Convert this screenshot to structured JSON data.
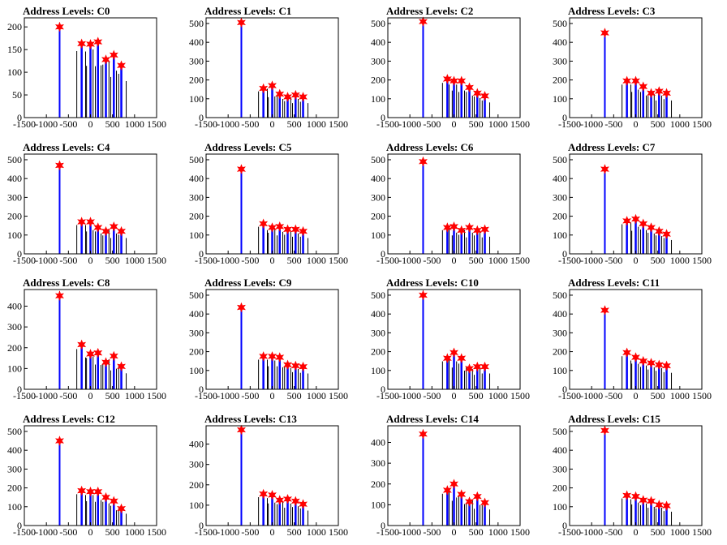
{
  "style": {
    "frame_color": "#000000",
    "spike_color": "#000000",
    "fill_color": "#0000ff",
    "marker_color": "#ff0000"
  },
  "chart_data": [
    {
      "type": "bar",
      "title": "Address Levels: C0",
      "xlim": [
        -1500,
        1500
      ],
      "ylim": [
        0,
        220
      ],
      "xticks": [
        -1500,
        -1000,
        -500,
        0,
        500,
        1000,
        1500
      ],
      "yticks": [
        0,
        50,
        100,
        150,
        200
      ],
      "peaks": [
        {
          "x": -700,
          "y": 200
        },
        {
          "x": -200,
          "y": 163
        },
        {
          "x": 0,
          "y": 162
        },
        {
          "x": 170,
          "y": 167
        },
        {
          "x": 350,
          "y": 128
        },
        {
          "x": 530,
          "y": 138
        },
        {
          "x": 700,
          "y": 115
        }
      ]
    },
    {
      "type": "bar",
      "title": "Address Levels: C1",
      "xlim": [
        -1500,
        1500
      ],
      "ylim": [
        0,
        530
      ],
      "xticks": [
        -1500,
        -1000,
        -500,
        0,
        500,
        1000,
        1500
      ],
      "yticks": [
        0,
        100,
        200,
        300,
        400,
        500
      ],
      "peaks": [
        {
          "x": -700,
          "y": 505
        },
        {
          "x": -200,
          "y": 155
        },
        {
          "x": 0,
          "y": 170
        },
        {
          "x": 170,
          "y": 125
        },
        {
          "x": 350,
          "y": 110
        },
        {
          "x": 530,
          "y": 120
        },
        {
          "x": 700,
          "y": 110
        }
      ]
    },
    {
      "type": "bar",
      "title": "Address Levels: C2",
      "xlim": [
        -1500,
        1500
      ],
      "ylim": [
        0,
        530
      ],
      "xticks": [
        -1500,
        -1000,
        -500,
        0,
        500,
        1000,
        1500
      ],
      "yticks": [
        0,
        100,
        200,
        300,
        400,
        500
      ],
      "peaks": [
        {
          "x": -700,
          "y": 510
        },
        {
          "x": -150,
          "y": 205
        },
        {
          "x": 0,
          "y": 195
        },
        {
          "x": 170,
          "y": 195
        },
        {
          "x": 350,
          "y": 160
        },
        {
          "x": 530,
          "y": 130
        },
        {
          "x": 700,
          "y": 115
        }
      ]
    },
    {
      "type": "bar",
      "title": "Address Levels: C3",
      "xlim": [
        -1500,
        1500
      ],
      "ylim": [
        0,
        530
      ],
      "xticks": [
        -1500,
        -1000,
        -500,
        0,
        500,
        1000,
        1500
      ],
      "yticks": [
        0,
        100,
        200,
        300,
        400,
        500
      ],
      "peaks": [
        {
          "x": -700,
          "y": 450
        },
        {
          "x": -200,
          "y": 195
        },
        {
          "x": 0,
          "y": 195
        },
        {
          "x": 170,
          "y": 165
        },
        {
          "x": 350,
          "y": 130
        },
        {
          "x": 530,
          "y": 140
        },
        {
          "x": 700,
          "y": 130
        }
      ]
    },
    {
      "type": "bar",
      "title": "Address Levels: C4",
      "xlim": [
        -1500,
        1500
      ],
      "ylim": [
        0,
        530
      ],
      "xticks": [
        -1500,
        -1000,
        -500,
        0,
        500,
        1000,
        1500
      ],
      "yticks": [
        0,
        100,
        200,
        300,
        400,
        500
      ],
      "peaks": [
        {
          "x": -700,
          "y": 470
        },
        {
          "x": -200,
          "y": 170
        },
        {
          "x": 0,
          "y": 170
        },
        {
          "x": 170,
          "y": 140
        },
        {
          "x": 350,
          "y": 120
        },
        {
          "x": 530,
          "y": 145
        },
        {
          "x": 700,
          "y": 120
        }
      ]
    },
    {
      "type": "bar",
      "title": "Address Levels: C5",
      "xlim": [
        -1500,
        1500
      ],
      "ylim": [
        0,
        530
      ],
      "xticks": [
        -1500,
        -1000,
        -500,
        0,
        500,
        1000,
        1500
      ],
      "yticks": [
        0,
        100,
        200,
        300,
        400,
        500
      ],
      "peaks": [
        {
          "x": -700,
          "y": 450
        },
        {
          "x": -200,
          "y": 160
        },
        {
          "x": 0,
          "y": 140
        },
        {
          "x": 170,
          "y": 145
        },
        {
          "x": 350,
          "y": 130
        },
        {
          "x": 530,
          "y": 130
        },
        {
          "x": 700,
          "y": 120
        }
      ]
    },
    {
      "type": "bar",
      "title": "Address Levels: C6",
      "xlim": [
        -1500,
        1500
      ],
      "ylim": [
        0,
        530
      ],
      "xticks": [
        -1500,
        -1000,
        -500,
        0,
        500,
        1000,
        1500
      ],
      "yticks": [
        0,
        100,
        200,
        300,
        400,
        500
      ],
      "peaks": [
        {
          "x": -700,
          "y": 490
        },
        {
          "x": -150,
          "y": 140
        },
        {
          "x": 0,
          "y": 145
        },
        {
          "x": 170,
          "y": 125
        },
        {
          "x": 350,
          "y": 140
        },
        {
          "x": 530,
          "y": 125
        },
        {
          "x": 700,
          "y": 130
        }
      ]
    },
    {
      "type": "bar",
      "title": "Address Levels: C7",
      "xlim": [
        -1500,
        1500
      ],
      "ylim": [
        0,
        530
      ],
      "xticks": [
        -1500,
        -1000,
        -500,
        0,
        500,
        1000,
        1500
      ],
      "yticks": [
        0,
        100,
        200,
        300,
        400,
        500
      ],
      "peaks": [
        {
          "x": -700,
          "y": 450
        },
        {
          "x": -200,
          "y": 175
        },
        {
          "x": 0,
          "y": 185
        },
        {
          "x": 170,
          "y": 160
        },
        {
          "x": 350,
          "y": 140
        },
        {
          "x": 530,
          "y": 120
        },
        {
          "x": 700,
          "y": 105
        }
      ]
    },
    {
      "type": "bar",
      "title": "Address Levels: C8",
      "xlim": [
        -1500,
        1500
      ],
      "ylim": [
        0,
        480
      ],
      "xticks": [
        -1500,
        -1000,
        -500,
        0,
        500,
        1000,
        1500
      ],
      "yticks": [
        0,
        100,
        200,
        300,
        400
      ],
      "peaks": [
        {
          "x": -700,
          "y": 450
        },
        {
          "x": -200,
          "y": 215
        },
        {
          "x": 0,
          "y": 170
        },
        {
          "x": 170,
          "y": 175
        },
        {
          "x": 350,
          "y": 130
        },
        {
          "x": 530,
          "y": 160
        },
        {
          "x": 700,
          "y": 110
        }
      ]
    },
    {
      "type": "bar",
      "title": "Address Levels: C9",
      "xlim": [
        -1500,
        1500
      ],
      "ylim": [
        0,
        530
      ],
      "xticks": [
        -1500,
        -1000,
        -500,
        0,
        500,
        1000,
        1500
      ],
      "yticks": [
        0,
        100,
        200,
        300,
        400,
        500
      ],
      "peaks": [
        {
          "x": -700,
          "y": 435
        },
        {
          "x": -200,
          "y": 175
        },
        {
          "x": 0,
          "y": 175
        },
        {
          "x": 170,
          "y": 170
        },
        {
          "x": 350,
          "y": 130
        },
        {
          "x": 530,
          "y": 125
        },
        {
          "x": 700,
          "y": 120
        }
      ]
    },
    {
      "type": "bar",
      "title": "Address Levels: C10",
      "xlim": [
        -1500,
        1500
      ],
      "ylim": [
        0,
        530
      ],
      "xticks": [
        -1500,
        -1000,
        -500,
        0,
        500,
        1000,
        1500
      ],
      "yticks": [
        0,
        100,
        200,
        300,
        400,
        500
      ],
      "peaks": [
        {
          "x": -700,
          "y": 500
        },
        {
          "x": -150,
          "y": 165
        },
        {
          "x": 0,
          "y": 195
        },
        {
          "x": 170,
          "y": 165
        },
        {
          "x": 350,
          "y": 110
        },
        {
          "x": 530,
          "y": 120
        },
        {
          "x": 700,
          "y": 120
        }
      ]
    },
    {
      "type": "bar",
      "title": "Address Levels: C11",
      "xlim": [
        -1500,
        1500
      ],
      "ylim": [
        0,
        530
      ],
      "xticks": [
        -1500,
        -1000,
        -500,
        0,
        500,
        1000,
        1500
      ],
      "yticks": [
        0,
        100,
        200,
        300,
        400,
        500
      ],
      "peaks": [
        {
          "x": -700,
          "y": 420
        },
        {
          "x": -200,
          "y": 195
        },
        {
          "x": 0,
          "y": 170
        },
        {
          "x": 170,
          "y": 150
        },
        {
          "x": 350,
          "y": 140
        },
        {
          "x": 530,
          "y": 130
        },
        {
          "x": 700,
          "y": 125
        }
      ]
    },
    {
      "type": "bar",
      "title": "Address Levels: C12",
      "xlim": [
        -1500,
        1500
      ],
      "ylim": [
        0,
        530
      ],
      "xticks": [
        -1500,
        -1000,
        -500,
        0,
        500,
        1000,
        1500
      ],
      "yticks": [
        0,
        100,
        200,
        300,
        400,
        500
      ],
      "peaks": [
        {
          "x": -700,
          "y": 450
        },
        {
          "x": -200,
          "y": 185
        },
        {
          "x": 0,
          "y": 180
        },
        {
          "x": 170,
          "y": 180
        },
        {
          "x": 350,
          "y": 150
        },
        {
          "x": 530,
          "y": 130
        },
        {
          "x": 700,
          "y": 90
        }
      ]
    },
    {
      "type": "bar",
      "title": "Address Levels: C13",
      "xlim": [
        -1500,
        1500
      ],
      "ylim": [
        0,
        490
      ],
      "xticks": [
        -1500,
        -1000,
        -500,
        0,
        500,
        1000,
        1500
      ],
      "yticks": [
        0,
        100,
        200,
        300,
        400
      ],
      "peaks": [
        {
          "x": -700,
          "y": 470
        },
        {
          "x": -200,
          "y": 155
        },
        {
          "x": 0,
          "y": 150
        },
        {
          "x": 170,
          "y": 125
        },
        {
          "x": 350,
          "y": 130
        },
        {
          "x": 530,
          "y": 120
        },
        {
          "x": 700,
          "y": 105
        }
      ]
    },
    {
      "type": "bar",
      "title": "Address Levels: C14",
      "xlim": [
        -1500,
        1500
      ],
      "ylim": [
        0,
        480
      ],
      "xticks": [
        -1500,
        -1000,
        -500,
        0,
        500,
        1000,
        1500
      ],
      "yticks": [
        0,
        100,
        200,
        300,
        400
      ],
      "peaks": [
        {
          "x": -700,
          "y": 440
        },
        {
          "x": -150,
          "y": 170
        },
        {
          "x": 0,
          "y": 200
        },
        {
          "x": 170,
          "y": 150
        },
        {
          "x": 350,
          "y": 115
        },
        {
          "x": 530,
          "y": 140
        },
        {
          "x": 700,
          "y": 110
        }
      ]
    },
    {
      "type": "bar",
      "title": "Address Levels: C15",
      "xlim": [
        -1500,
        1500
      ],
      "ylim": [
        0,
        530
      ],
      "xticks": [
        -1500,
        -1000,
        -500,
        0,
        500,
        1000,
        1500
      ],
      "yticks": [
        0,
        100,
        200,
        300,
        400,
        500
      ],
      "peaks": [
        {
          "x": -700,
          "y": 505
        },
        {
          "x": -200,
          "y": 160
        },
        {
          "x": 0,
          "y": 155
        },
        {
          "x": 170,
          "y": 135
        },
        {
          "x": 350,
          "y": 130
        },
        {
          "x": 530,
          "y": 110
        },
        {
          "x": 700,
          "y": 105
        }
      ]
    }
  ]
}
